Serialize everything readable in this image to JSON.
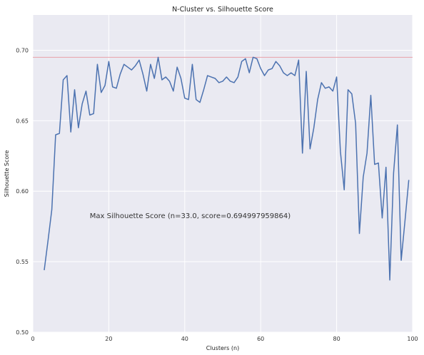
{
  "chart_data": {
    "type": "line",
    "title": "N-Cluster vs. Silhouette Score",
    "xlabel": "Clusters (n)",
    "ylabel": "Silhouette Score",
    "xlim": [
      0,
      100
    ],
    "ylim": [
      0.5,
      0.725
    ],
    "xticks": [
      0,
      20,
      40,
      60,
      80,
      100
    ],
    "yticks": [
      0.5,
      0.55,
      0.6,
      0.65,
      0.7
    ],
    "ytick_labels": [
      "0.50",
      "0.55",
      "0.60",
      "0.65",
      "0.70"
    ],
    "xtick_labels": [
      "0",
      "20",
      "40",
      "60",
      "80",
      "100"
    ],
    "grid": true,
    "background": "#eaeaf2",
    "series": [
      {
        "color": "#4c72b0",
        "x": [
          3,
          4,
          5,
          6,
          7,
          8,
          9,
          10,
          11,
          12,
          13,
          14,
          15,
          16,
          17,
          18,
          19,
          20,
          21,
          22,
          23,
          24,
          25,
          26,
          27,
          28,
          29,
          30,
          31,
          32,
          33,
          34,
          35,
          36,
          37,
          38,
          39,
          40,
          41,
          42,
          43,
          44,
          45,
          46,
          47,
          48,
          49,
          50,
          51,
          52,
          53,
          54,
          55,
          56,
          57,
          58,
          59,
          60,
          61,
          62,
          63,
          64,
          65,
          66,
          67,
          68,
          69,
          70,
          71,
          72,
          73,
          74,
          75,
          76,
          77,
          78,
          79,
          80,
          81,
          82,
          83,
          84,
          85,
          86,
          87,
          88,
          89,
          90,
          91,
          92,
          93,
          94,
          95,
          96,
          97,
          98,
          99
        ],
        "y": [
          0.544,
          0.565,
          0.587,
          0.64,
          0.641,
          0.679,
          0.682,
          0.642,
          0.672,
          0.645,
          0.662,
          0.671,
          0.654,
          0.655,
          0.69,
          0.67,
          0.675,
          0.692,
          0.674,
          0.673,
          0.683,
          0.69,
          0.688,
          0.686,
          0.689,
          0.693,
          0.683,
          0.671,
          0.69,
          0.68,
          0.695,
          0.679,
          0.681,
          0.678,
          0.671,
          0.688,
          0.68,
          0.666,
          0.665,
          0.69,
          0.665,
          0.663,
          0.672,
          0.682,
          0.681,
          0.68,
          0.677,
          0.678,
          0.681,
          0.678,
          0.677,
          0.681,
          0.692,
          0.694,
          0.684,
          0.695,
          0.694,
          0.687,
          0.682,
          0.686,
          0.687,
          0.692,
          0.689,
          0.684,
          0.682,
          0.684,
          0.682,
          0.693,
          0.627,
          0.685,
          0.63,
          0.645,
          0.665,
          0.677,
          0.673,
          0.674,
          0.671,
          0.681,
          0.628,
          0.601,
          0.672,
          0.669,
          0.648,
          0.57,
          0.61,
          0.627,
          0.668,
          0.619,
          0.62,
          0.581,
          0.617,
          0.537,
          0.613,
          0.647,
          0.551,
          0.579,
          0.608
        ]
      }
    ],
    "reference_line": {
      "y": 0.694997959864,
      "color": "#e8a0a8"
    },
    "annotation": {
      "text": "Max Silhouette Score (n=33.0, score=0.694997959864)",
      "x": 15,
      "y": 0.581
    }
  }
}
